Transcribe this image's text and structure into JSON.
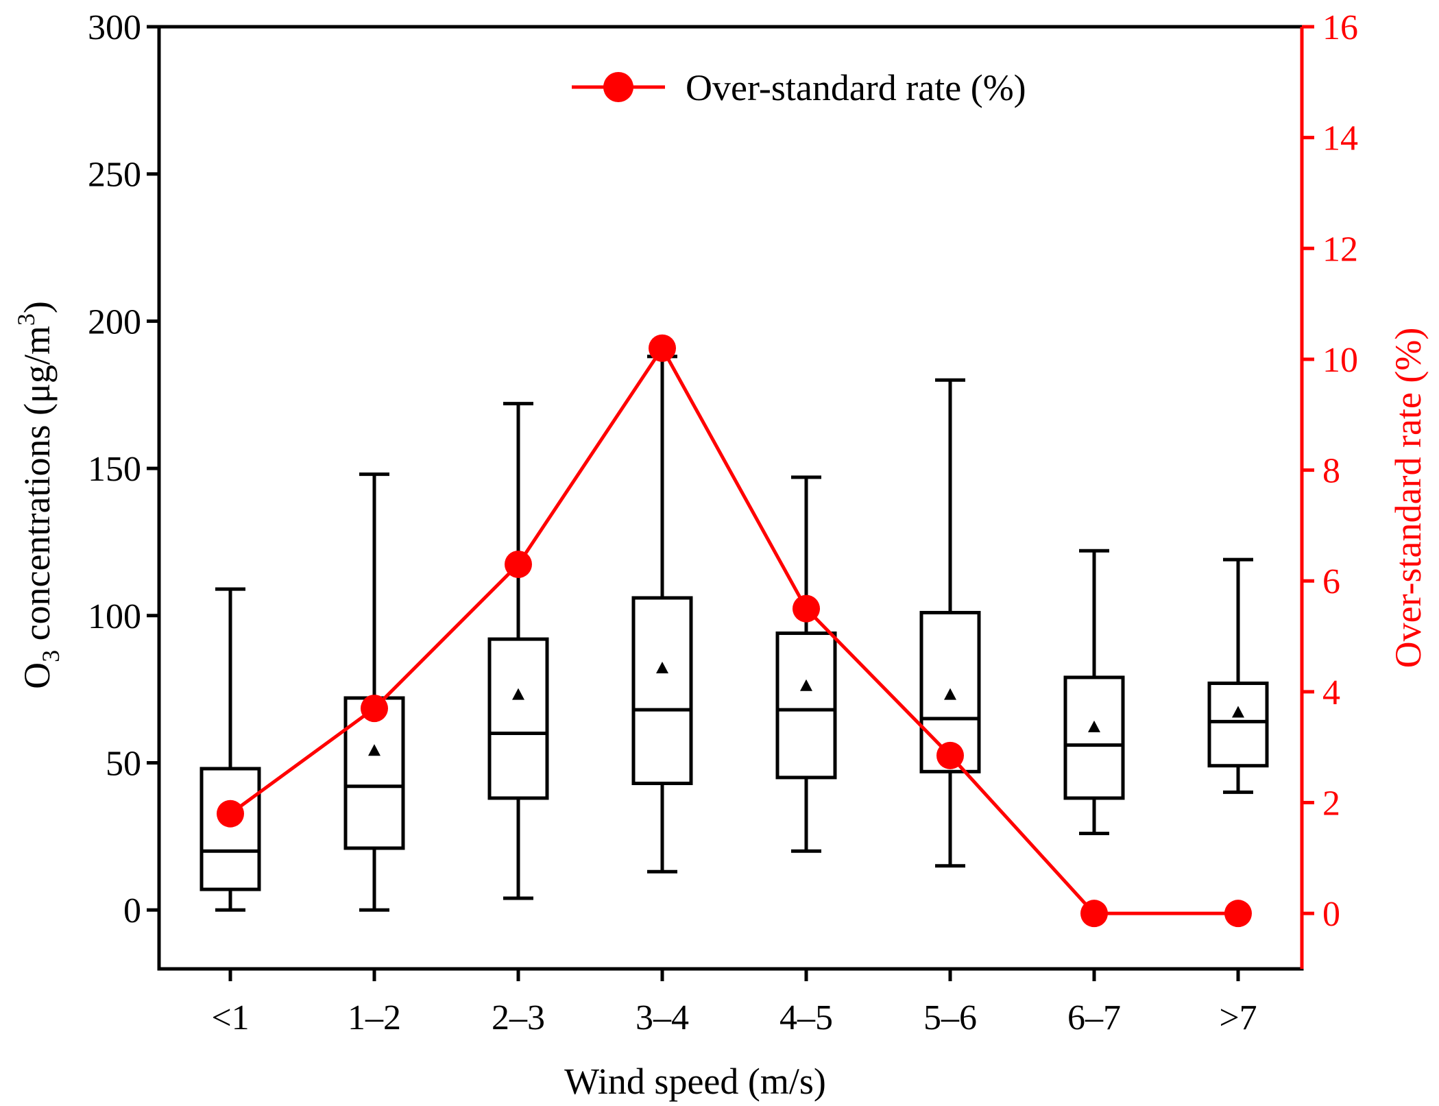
{
  "chart_data": {
    "type": "box-line",
    "xlabel": "Wind speed (m/s)",
    "ylabel_left": {
      "prefix": "O",
      "sub": "3",
      "middle": " concentrations (μg/m",
      "sup": "3",
      "suffix": ")"
    },
    "ylabel_right": "Over-standard rate (%)",
    "categories": [
      "<1",
      "1–2",
      "2–3",
      "3–4",
      "4–5",
      "5–6",
      "6–7",
      ">7"
    ],
    "left_ylim": [
      -20,
      300
    ],
    "left_yticks": [
      0,
      50,
      100,
      150,
      200,
      250,
      300
    ],
    "right_ylim": [
      -1,
      16
    ],
    "right_yticks": [
      0,
      2,
      4,
      6,
      8,
      10,
      12,
      14,
      16
    ],
    "boxes": [
      {
        "category": "<1",
        "whisker_low": 0,
        "q1": 7,
        "median": 20,
        "q3": 48,
        "whisker_high": 109,
        "mean": 35
      },
      {
        "category": "1–2",
        "whisker_low": 0,
        "q1": 21,
        "median": 42,
        "q3": 72,
        "whisker_high": 148,
        "mean": 54
      },
      {
        "category": "2–3",
        "whisker_low": 4,
        "q1": 38,
        "median": 60,
        "q3": 92,
        "whisker_high": 172,
        "mean": 73
      },
      {
        "category": "3–4",
        "whisker_low": 13,
        "q1": 43,
        "median": 68,
        "q3": 106,
        "whisker_high": 188,
        "mean": 82
      },
      {
        "category": "4–5",
        "whisker_low": 20,
        "q1": 45,
        "median": 68,
        "q3": 94,
        "whisker_high": 147,
        "mean": 76
      },
      {
        "category": "5–6",
        "whisker_low": 15,
        "q1": 47,
        "median": 65,
        "q3": 101,
        "whisker_high": 180,
        "mean": 73
      },
      {
        "category": "6–7",
        "whisker_low": 26,
        "q1": 38,
        "median": 56,
        "q3": 79,
        "whisker_high": 122,
        "mean": 62
      },
      {
        "category": ">7",
        "whisker_low": 40,
        "q1": 49,
        "median": 64,
        "q3": 77,
        "whisker_high": 119,
        "mean": 67
      }
    ],
    "series": [
      {
        "name": "Over-standard rate (%)",
        "axis": "right",
        "values": [
          1.8,
          3.7,
          6.3,
          10.2,
          5.5,
          2.85,
          0,
          0
        ]
      }
    ],
    "legend": {
      "label": "Over-standard rate (%)",
      "position": "top-center"
    },
    "colors": {
      "box": "#000000",
      "line": "#ff0000"
    }
  }
}
